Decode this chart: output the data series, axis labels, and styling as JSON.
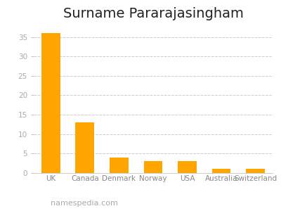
{
  "title": "Surname Pararajasingham",
  "categories": [
    "UK",
    "Canada",
    "Denmark",
    "Norway",
    "USA",
    "Australia",
    "Switzerland"
  ],
  "values": [
    36,
    13,
    4,
    3,
    3,
    1,
    1
  ],
  "bar_color": "#FFA500",
  "background_color": "#ffffff",
  "ylim": [
    0,
    38
  ],
  "yticks": [
    0,
    5,
    10,
    15,
    20,
    25,
    30,
    35
  ],
  "grid_color": "#cccccc",
  "title_fontsize": 14,
  "tick_fontsize": 7.5,
  "footer_text": "namespedia.com",
  "footer_fontsize": 8,
  "footer_color": "#aaaaaa",
  "bar_width": 0.55
}
